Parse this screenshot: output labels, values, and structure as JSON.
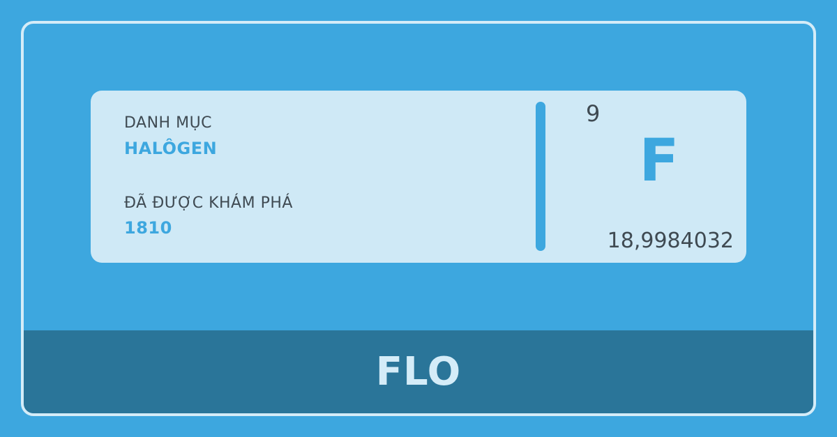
{
  "card": {
    "category_label": "DANH MỤC",
    "category_value": "HALÔGEN",
    "discovered_label": "ĐÃ ĐƯỢC KHÁM PHÁ",
    "discovered_value": "1810",
    "atomic_number": "9",
    "symbol": "F",
    "atomic_mass": "18,9984032"
  },
  "footer": {
    "element_name": "FLO"
  },
  "colors": {
    "background": "#3da7df",
    "card": "#cfe9f6",
    "footer": "#2a7599",
    "accent": "#3da7df",
    "text_dark": "#3f4a52",
    "text_light": "#d4ecf8"
  }
}
